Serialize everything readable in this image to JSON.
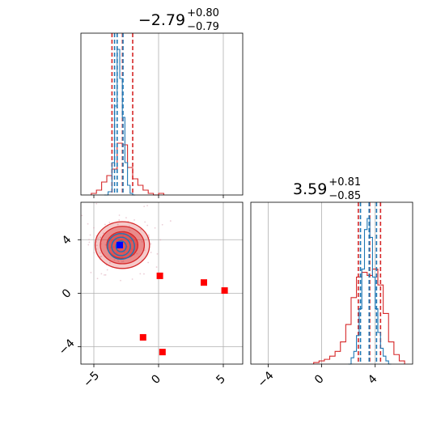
{
  "colors": {
    "red": "#d62728",
    "blue": "#1f77b4",
    "marker_blue": "#0000ff",
    "marker_red": "#ff0000",
    "grid": "#b0b0b0",
    "frame": "#000000"
  },
  "titles": {
    "param1": {
      "median": "−2.79",
      "plus": "+0.80",
      "minus": "−0.79"
    },
    "param2": {
      "median": "3.59",
      "plus": "+0.81",
      "minus": "−0.85"
    }
  },
  "chart_data": [
    {
      "type": "histogram",
      "panel": "top-left marginal",
      "xlim": [
        -6,
        6.5
      ],
      "grid": true,
      "series": [
        {
          "color": "#1f77b4",
          "x_edges": [
            -4.2,
            -3.9,
            -3.6,
            -3.4,
            -3.2,
            -3.0,
            -2.8,
            -2.6,
            -2.4,
            -2.2,
            -2.0,
            -1.8
          ],
          "heights": [
            0.0,
            0.02,
            0.2,
            0.55,
            0.9,
            0.72,
            0.48,
            0.2,
            0.06,
            0.01,
            0.0
          ],
          "quantiles": [
            -3.4,
            -3.2,
            -2.75
          ]
        },
        {
          "color": "#d62728",
          "x_edges": [
            -5.2,
            -4.8,
            -4.4,
            -4.0,
            -3.6,
            -3.2,
            -2.8,
            -2.4,
            -2.0,
            -1.6,
            -1.2,
            -0.8,
            -0.4,
            0.0,
            0.4
          ],
          "heights": [
            0.01,
            0.03,
            0.08,
            0.12,
            0.16,
            0.32,
            0.31,
            0.17,
            0.1,
            0.06,
            0.03,
            0.01,
            0.0,
            0.01
          ],
          "quantiles": [
            -3.6,
            -2.79,
            -2.0
          ]
        }
      ]
    },
    {
      "type": "scatter",
      "panel": "bottom-left 2D",
      "xlim": [
        -6,
        6.5
      ],
      "ylim": [
        -5.3,
        6.8
      ],
      "xticks": [
        -5,
        0,
        5
      ],
      "yticks": [
        -4,
        0,
        4
      ],
      "grid": true,
      "red_markers": {
        "x": [
          0.1,
          3.5,
          5.1,
          -1.2,
          0.3
        ],
        "y": [
          1.3,
          0.8,
          0.2,
          -3.3,
          -4.4
        ]
      },
      "blue_marker": {
        "x": -3.0,
        "y": 3.6
      },
      "contours_red": [
        {
          "cx": -2.8,
          "cy": 3.6,
          "rx": 2.1,
          "ry": 1.75,
          "alpha": 0.45
        },
        {
          "cx": -2.8,
          "cy": 3.6,
          "rx": 1.7,
          "ry": 1.4,
          "alpha": 0.7
        },
        {
          "cx": -2.8,
          "cy": 3.6,
          "rx": 1.2,
          "ry": 1.0,
          "alpha": 0.95
        }
      ],
      "contours_blue": [
        {
          "cx": -2.9,
          "cy": 3.5,
          "rx": 0.65,
          "ry": 0.6
        },
        {
          "cx": -2.9,
          "cy": 3.5,
          "rx": 0.45,
          "ry": 0.43
        },
        {
          "cx": -2.9,
          "cy": 3.5,
          "rx": 0.25,
          "ry": 0.25
        }
      ]
    },
    {
      "type": "histogram",
      "panel": "bottom-right marginal",
      "xlim": [
        -5.3,
        6.8
      ],
      "xticks": [
        -4,
        0,
        4
      ],
      "grid": true,
      "series": [
        {
          "color": "#1f77b4",
          "x_edges": [
            2.0,
            2.2,
            2.4,
            2.6,
            2.8,
            3.0,
            3.2,
            3.4,
            3.6,
            3.8,
            4.0,
            4.2,
            4.4,
            4.6,
            4.8,
            5.0,
            5.2
          ],
          "heights": [
            0.0,
            0.04,
            0.08,
            0.18,
            0.35,
            0.6,
            0.85,
            0.92,
            0.8,
            0.55,
            0.35,
            0.2,
            0.1,
            0.05,
            0.02,
            0.0
          ],
          "quantiles": [
            2.9,
            3.55,
            4.1
          ]
        },
        {
          "color": "#d62728",
          "x_edges": [
            -0.6,
            -0.2,
            0.2,
            0.6,
            1.0,
            1.4,
            1.8,
            2.2,
            2.6,
            3.0,
            3.4,
            3.8,
            4.2,
            4.6,
            5.0,
            5.4,
            5.8,
            6.2
          ],
          "heights": [
            0.01,
            0.02,
            0.03,
            0.05,
            0.08,
            0.14,
            0.25,
            0.42,
            0.55,
            0.58,
            0.56,
            0.6,
            0.5,
            0.32,
            0.14,
            0.06,
            0.02
          ],
          "quantiles": [
            2.74,
            3.59,
            4.4
          ]
        }
      ]
    }
  ]
}
